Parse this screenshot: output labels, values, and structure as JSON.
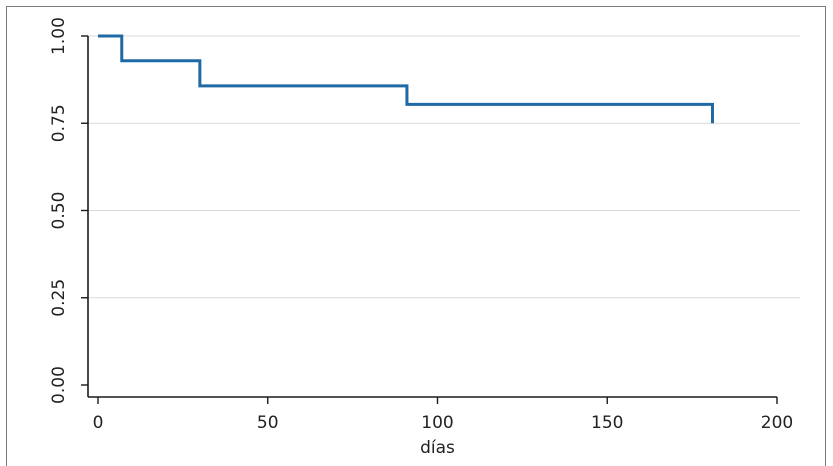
{
  "chart_data": {
    "type": "line",
    "step": true,
    "title": "",
    "xlabel": "días",
    "ylabel": "",
    "xlim": [
      0,
      200
    ],
    "ylim": [
      0,
      1
    ],
    "x_ticks": [
      0,
      50,
      100,
      150,
      200
    ],
    "x_tick_labels": [
      "0",
      "50",
      "100",
      "150",
      "200"
    ],
    "y_ticks": [
      0,
      0.25,
      0.5,
      0.75,
      1
    ],
    "y_tick_labels": [
      "0.00",
      "0.25",
      "0.50",
      "0.75",
      "1.00"
    ],
    "grid": "horizontal",
    "legend": "none",
    "series": [
      {
        "x": [
          0,
          7,
          30,
          91,
          181
        ],
        "y": [
          1.0,
          0.929,
          0.857,
          0.804,
          0.75
        ],
        "color": "#1f6aa5"
      }
    ]
  },
  "colors": {
    "line": "#1f6aa5",
    "grid": "#d9d9d9",
    "axis": "#1a1a1a"
  }
}
